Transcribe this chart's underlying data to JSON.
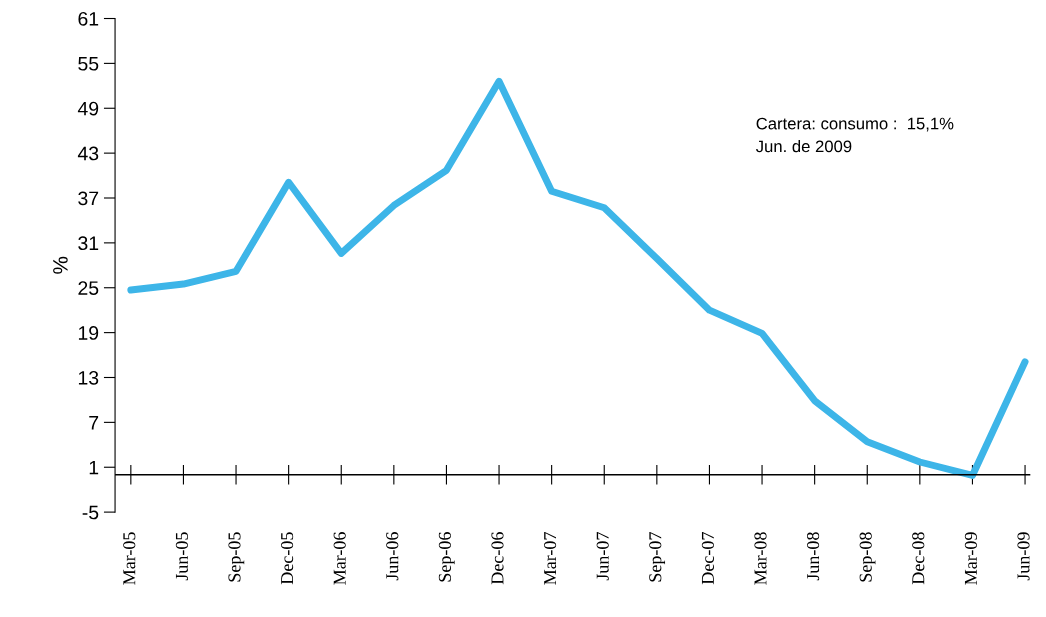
{
  "chart_data": {
    "type": "line",
    "ylabel": "%",
    "categories": [
      "Mar-05",
      "Jun-05",
      "Sep-05",
      "Dec-05",
      "Mar-06",
      "Jun-06",
      "Sep-06",
      "Dec-06",
      "Mar-07",
      "Jun-07",
      "Sep-07",
      "Dec-07",
      "Mar-08",
      "Jun-08",
      "Sep-08",
      "Dec-08",
      "Mar-09",
      "Jun-09"
    ],
    "series": [
      {
        "color": "#3db5e8",
        "values": [
          24.7,
          25.5,
          27.2,
          39.1,
          29.6,
          36.0,
          40.7,
          52.6,
          37.9,
          35.7,
          28.9,
          22.0,
          18.9,
          9.9,
          4.4,
          1.7,
          -0.1,
          15.1
        ]
      }
    ],
    "ylim": [
      -5,
      61
    ],
    "yticks": [
      -5,
      1,
      7,
      13,
      19,
      25,
      31,
      37,
      43,
      49,
      55,
      61
    ],
    "ref_lines": [
      {
        "axis": "y",
        "value": 0,
        "color": "#000000"
      }
    ],
    "annotations": [
      "Cartera: consumo :  15,1%\nJun. de 2009"
    ],
    "grid": false,
    "legend": false,
    "marker": "none",
    "line_style": "solid"
  }
}
